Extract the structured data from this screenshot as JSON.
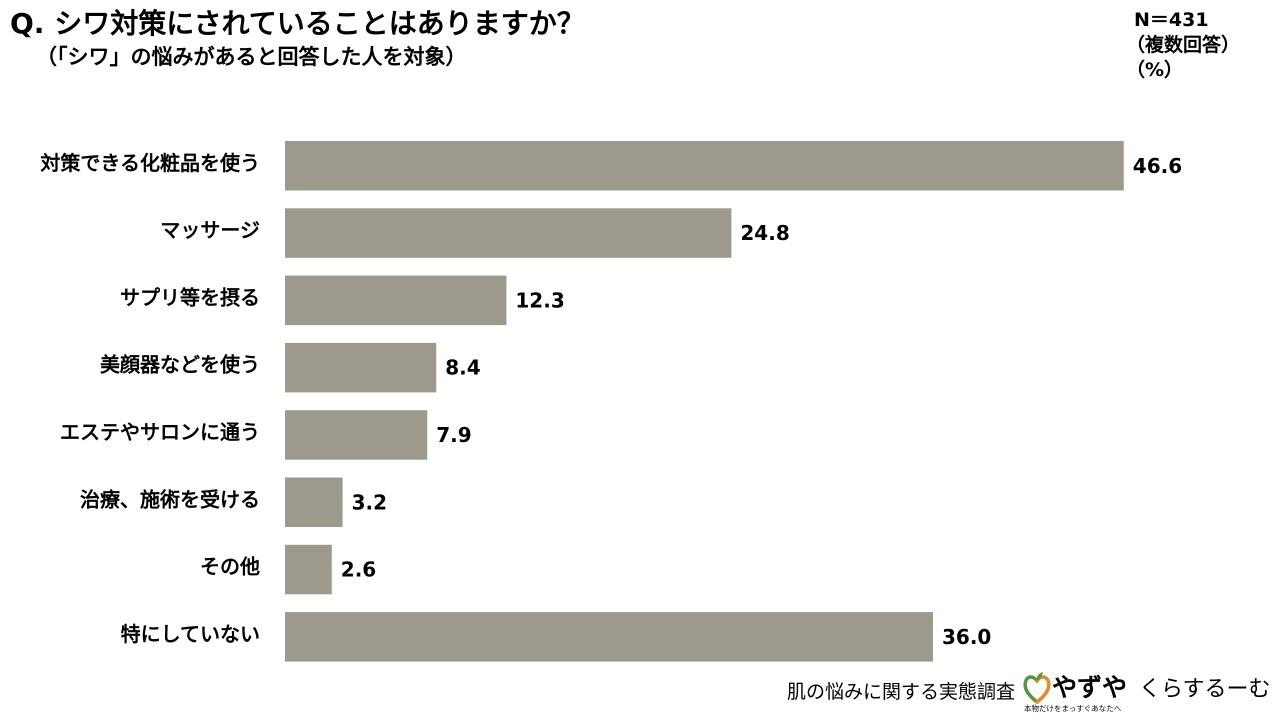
{
  "chart_data": {
    "type": "bar",
    "orientation": "horizontal",
    "title": "Q. シワ対策にされていることはありますか？",
    "subtitle": "（「シワ」の悩みがあると回答した人を対象）",
    "sample_size": "N＝431",
    "answer_type": "（複数回答）",
    "unit": "（%）",
    "categories": [
      "対策できる化粧品を使う",
      "マッサージ",
      "サプリ等を摂る",
      "美顔器などを使う",
      "エステやサロンに通う",
      "治療、施術を受ける",
      "その他",
      "特にしていない"
    ],
    "values": [
      46.6,
      24.8,
      12.3,
      8.4,
      7.9,
      3.2,
      2.6,
      36.0
    ],
    "xlim": [
      0,
      50
    ],
    "grid": false,
    "legend": false,
    "data_labels": true
  },
  "footer": {
    "survey_name": "肌の悩みに関する実態調査",
    "brand_logo": {
      "name": "やずや",
      "tagline": "本物だけをまっすぐあなたへ",
      "icon": "heart-icon"
    },
    "site_logo": "くらするーむ"
  },
  "colors": {
    "background": "#ffffff",
    "text": "#000000",
    "bar": "#9d998c",
    "logo_green": "#4f9a3c",
    "logo_orange": "#e98a1e"
  }
}
